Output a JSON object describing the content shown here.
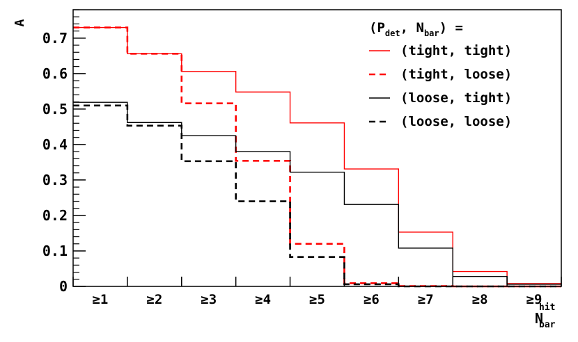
{
  "chart_data": {
    "type": "line",
    "style": "step-histogram",
    "categories": [
      "≥1",
      "≥2",
      "≥3",
      "≥4",
      "≥5",
      "≥6",
      "≥7",
      "≥8",
      "≥9"
    ],
    "xlabel": {
      "main": "N",
      "sup": "hit",
      "sub": "bar"
    },
    "ylabel": "A",
    "ylim": [
      0,
      0.78
    ],
    "yticks": [
      0,
      0.1,
      0.2,
      0.3,
      0.4,
      0.5,
      0.6,
      0.7
    ],
    "ytick_labels": [
      "0",
      "0.1",
      "0.2",
      "0.3",
      "0.4",
      "0.5",
      "0.6",
      "0.7"
    ],
    "grid": false,
    "legend_title": {
      "open": "(",
      "p": "P",
      "p_sub": "det",
      "comma": ", ",
      "n": "N",
      "n_sub": "bar",
      "close": ") ="
    },
    "legend_position": "top-right",
    "series": [
      {
        "name": "(tight, tight)",
        "color": "#ff0000",
        "dash": "solid",
        "values": [
          0.73,
          0.656,
          0.606,
          0.548,
          0.461,
          0.331,
          0.153,
          0.042,
          0.008
        ]
      },
      {
        "name": "(tight, loose)",
        "color": "#ff0000",
        "dash": "dashed",
        "values": [
          0.73,
          0.656,
          0.516,
          0.354,
          0.12,
          0.009,
          0.001,
          0.0,
          0.0
        ]
      },
      {
        "name": "(loose, tight)",
        "color": "#000000",
        "dash": "solid",
        "values": [
          0.519,
          0.462,
          0.425,
          0.38,
          0.322,
          0.231,
          0.108,
          0.028,
          0.006
        ]
      },
      {
        "name": "(loose, loose)",
        "color": "#000000",
        "dash": "dashed",
        "values": [
          0.51,
          0.453,
          0.353,
          0.24,
          0.083,
          0.006,
          0.0,
          0.0,
          0.0
        ]
      }
    ]
  }
}
